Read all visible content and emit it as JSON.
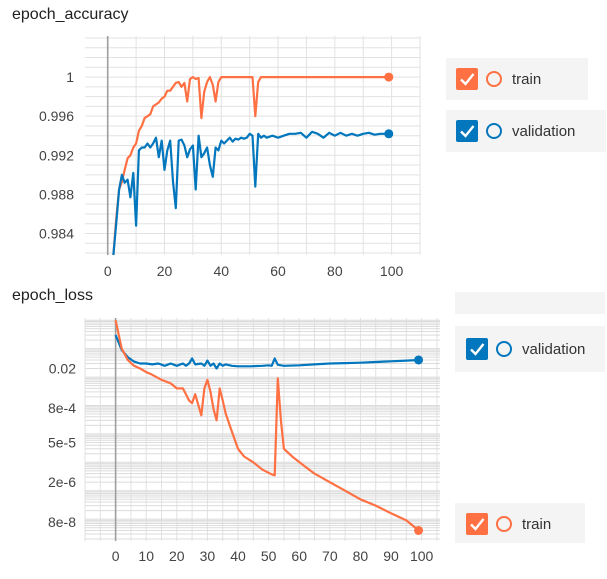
{
  "colors": {
    "train": "#ff7043",
    "validation": "#0277bd"
  },
  "icons": {
    "check": "check-icon",
    "circle": "circle-icon"
  },
  "chart_data": [
    {
      "type": "line",
      "title": "epoch_accuracy",
      "xlabel": "",
      "ylabel": "",
      "xlim": [
        -8,
        110
      ],
      "ylim": [
        0.9818,
        1.0042
      ],
      "grid": true,
      "x_ticks": [
        0,
        20,
        40,
        60,
        80,
        100
      ],
      "y_ticks": [
        {
          "v": 0.984,
          "t": "0.984"
        },
        {
          "v": 0.988,
          "t": "0.988"
        },
        {
          "v": 0.992,
          "t": "0.992"
        },
        {
          "v": 0.996,
          "t": "0.996"
        },
        {
          "v": 1.0,
          "t": "1"
        }
      ],
      "legend": [
        {
          "name": "train",
          "checked": true
        },
        {
          "name": "validation",
          "checked": true
        }
      ],
      "series": [
        {
          "name": "train",
          "color": "#ff7043",
          "points": [
            [
              2,
              0.9818
            ],
            [
              3,
              0.9855
            ],
            [
              4,
              0.9885
            ],
            [
              5,
              0.9893
            ],
            [
              6,
              0.9905
            ],
            [
              7,
              0.9917
            ],
            [
              8,
              0.992
            ],
            [
              9,
              0.9928
            ],
            [
              10,
              0.9932
            ],
            [
              11,
              0.9945
            ],
            [
              12,
              0.995
            ],
            [
              13,
              0.9958
            ],
            [
              14,
              0.996
            ],
            [
              15,
              0.9962
            ],
            [
              16,
              0.997
            ],
            [
              17,
              0.9972
            ],
            [
              18,
              0.9974
            ],
            [
              19,
              0.9978
            ],
            [
              20,
              0.998
            ],
            [
              21,
              0.9986
            ],
            [
              22,
              0.9986
            ],
            [
              23,
              0.999
            ],
            [
              24,
              0.9994
            ],
            [
              25,
              0.9995
            ],
            [
              26,
              0.999
            ],
            [
              27,
              0.9994
            ],
            [
              28,
              0.9975
            ],
            [
              29,
              0.9998
            ],
            [
              30,
              1.0
            ],
            [
              31,
              0.9998
            ],
            [
              32,
              0.9999
            ],
            [
              33,
              0.9958
            ],
            [
              34,
              0.9985
            ],
            [
              35,
              0.9995
            ],
            [
              36,
              1.0
            ],
            [
              37,
              0.9992
            ],
            [
              38,
              0.9975
            ],
            [
              39,
              0.9995
            ],
            [
              40,
              1.0
            ],
            [
              50,
              1.0
            ],
            [
              51,
              1.0
            ],
            [
              52,
              0.996
            ],
            [
              53,
              0.9995
            ],
            [
              54,
              1.0
            ],
            [
              60,
              1.0
            ],
            [
              70,
              1.0
            ],
            [
              80,
              1.0
            ],
            [
              90,
              1.0
            ],
            [
              99,
              1.0
            ]
          ]
        },
        {
          "name": "validation",
          "color": "#0277bd",
          "points": [
            [
              2,
              0.9818
            ],
            [
              3,
              0.985
            ],
            [
              4,
              0.9885
            ],
            [
              5,
              0.99
            ],
            [
              6,
              0.9892
            ],
            [
              7,
              0.9895
            ],
            [
              8,
              0.9877
            ],
            [
              9,
              0.9902
            ],
            [
              10,
              0.9848
            ],
            [
              11,
              0.9925
            ],
            [
              12,
              0.9928
            ],
            [
              13,
              0.9928
            ],
            [
              14,
              0.9932
            ],
            [
              15,
              0.9928
            ],
            [
              16,
              0.9932
            ],
            [
              17,
              0.9938
            ],
            [
              18,
              0.9918
            ],
            [
              19,
              0.9935
            ],
            [
              20,
              0.9905
            ],
            [
              21,
              0.9925
            ],
            [
              22,
              0.9935
            ],
            [
              23,
              0.9893
            ],
            [
              24,
              0.9866
            ],
            [
              25,
              0.9935
            ],
            [
              26,
              0.9936
            ],
            [
              27,
              0.993
            ],
            [
              28,
              0.9918
            ],
            [
              29,
              0.9926
            ],
            [
              30,
              0.993
            ],
            [
              31,
              0.9885
            ],
            [
              32,
              0.994
            ],
            [
              33,
              0.9918
            ],
            [
              34,
              0.9922
            ],
            [
              35,
              0.9928
            ],
            [
              36,
              0.991
            ],
            [
              37,
              0.9898
            ],
            [
              38,
              0.9928
            ],
            [
              39,
              0.9925
            ],
            [
              40,
              0.9935
            ],
            [
              41,
              0.9932
            ],
            [
              42,
              0.9935
            ],
            [
              43,
              0.9938
            ],
            [
              44,
              0.9934
            ],
            [
              45,
              0.9937
            ],
            [
              46,
              0.9936
            ],
            [
              47,
              0.9938
            ],
            [
              48,
              0.9937
            ],
            [
              49,
              0.9938
            ],
            [
              50,
              0.9942
            ],
            [
              51,
              0.994
            ],
            [
              52,
              0.9888
            ],
            [
              53,
              0.9942
            ],
            [
              54,
              0.9938
            ],
            [
              55,
              0.994
            ],
            [
              56,
              0.9938
            ],
            [
              58,
              0.994
            ],
            [
              60,
              0.9938
            ],
            [
              62,
              0.994
            ],
            [
              64,
              0.9942
            ],
            [
              66,
              0.9942
            ],
            [
              68,
              0.9943
            ],
            [
              70,
              0.9938
            ],
            [
              72,
              0.9944
            ],
            [
              74,
              0.9942
            ],
            [
              76,
              0.9938
            ],
            [
              78,
              0.9943
            ],
            [
              80,
              0.994
            ],
            [
              82,
              0.9943
            ],
            [
              84,
              0.994
            ],
            [
              86,
              0.9942
            ],
            [
              88,
              0.994
            ],
            [
              90,
              0.9942
            ],
            [
              92,
              0.9943
            ],
            [
              94,
              0.9941
            ],
            [
              96,
              0.9942
            ],
            [
              99,
              0.9942
            ]
          ]
        }
      ]
    },
    {
      "type": "line",
      "title": "epoch_loss",
      "xlabel": "",
      "ylabel": "",
      "scale": "log",
      "xlim": [
        -10,
        106
      ],
      "ylim": [
        1.7e-08,
        1.2
      ],
      "grid": true,
      "x_ticks": [
        0,
        10,
        20,
        30,
        40,
        50,
        60,
        70,
        80,
        90,
        100
      ],
      "y_ticks": [
        {
          "v": 8e-08,
          "t": "8e-8"
        },
        {
          "v": 2e-06,
          "t": "2e-6"
        },
        {
          "v": 5e-05,
          "t": "5e-5"
        },
        {
          "v": 0.0008,
          "t": "8e-4"
        },
        {
          "v": 0.02,
          "t": "0.02"
        }
      ],
      "legend": [
        {
          "name": "validation",
          "checked": true
        },
        {
          "name": "train",
          "checked": true
        }
      ],
      "series": [
        {
          "name": "validation",
          "color": "#0277bd",
          "points": [
            [
              0,
              0.3
            ],
            [
              2,
              0.09
            ],
            [
              4,
              0.05
            ],
            [
              6,
              0.035
            ],
            [
              8,
              0.03
            ],
            [
              10,
              0.03
            ],
            [
              12,
              0.028
            ],
            [
              14,
              0.03
            ],
            [
              16,
              0.025
            ],
            [
              18,
              0.03
            ],
            [
              20,
              0.025
            ],
            [
              22,
              0.03
            ],
            [
              23,
              0.025
            ],
            [
              24,
              0.03
            ],
            [
              25,
              0.045
            ],
            [
              26,
              0.028
            ],
            [
              28,
              0.03
            ],
            [
              29,
              0.025
            ],
            [
              30,
              0.038
            ],
            [
              31,
              0.025
            ],
            [
              32,
              0.03
            ],
            [
              33,
              0.02
            ],
            [
              34,
              0.03
            ],
            [
              35,
              0.025
            ],
            [
              36,
              0.028
            ],
            [
              38,
              0.025
            ],
            [
              40,
              0.024
            ],
            [
              44,
              0.024
            ],
            [
              48,
              0.025
            ],
            [
              50,
              0.026
            ],
            [
              51,
              0.025
            ],
            [
              52,
              0.045
            ],
            [
              53,
              0.027
            ],
            [
              55,
              0.025
            ],
            [
              60,
              0.026
            ],
            [
              65,
              0.028
            ],
            [
              70,
              0.03
            ],
            [
              75,
              0.031
            ],
            [
              80,
              0.032
            ],
            [
              85,
              0.034
            ],
            [
              90,
              0.036
            ],
            [
              95,
              0.038
            ],
            [
              99,
              0.04
            ]
          ]
        },
        {
          "name": "train",
          "color": "#ff7043",
          "points": [
            [
              0,
              1.0
            ],
            [
              2,
              0.1
            ],
            [
              4,
              0.04
            ],
            [
              6,
              0.025
            ],
            [
              8,
              0.02
            ],
            [
              10,
              0.015
            ],
            [
              12,
              0.012
            ],
            [
              15,
              0.008
            ],
            [
              18,
              0.006
            ],
            [
              20,
              0.004
            ],
            [
              22,
              0.004
            ],
            [
              24,
              0.0015
            ],
            [
              25,
              0.0012
            ],
            [
              26,
              0.0025
            ],
            [
              28,
              0.00045
            ],
            [
              29,
              0.004
            ],
            [
              30,
              0.008
            ],
            [
              31,
              0.003
            ],
            [
              32,
              0.00075
            ],
            [
              33,
              0.0003
            ],
            [
              34,
              0.004
            ],
            [
              35,
              0.0015
            ],
            [
              36,
              0.0005
            ],
            [
              37,
              0.00025
            ],
            [
              38,
              0.00012
            ],
            [
              40,
              3e-05
            ],
            [
              42,
              1.6e-05
            ],
            [
              45,
              1e-05
            ],
            [
              48,
              5.5e-06
            ],
            [
              51,
              3.8e-06
            ],
            [
              52,
              3.5e-06
            ],
            [
              53,
              0.009
            ],
            [
              54,
              0.0003
            ],
            [
              55,
              3e-05
            ],
            [
              58,
              1.5e-05
            ],
            [
              62,
              7e-06
            ],
            [
              65,
              4e-06
            ],
            [
              70,
              2e-06
            ],
            [
              75,
              1e-06
            ],
            [
              80,
              5e-07
            ],
            [
              85,
              3e-07
            ],
            [
              90,
              1.6e-07
            ],
            [
              95,
              9e-08
            ],
            [
              99,
              4e-08
            ]
          ]
        }
      ]
    }
  ]
}
